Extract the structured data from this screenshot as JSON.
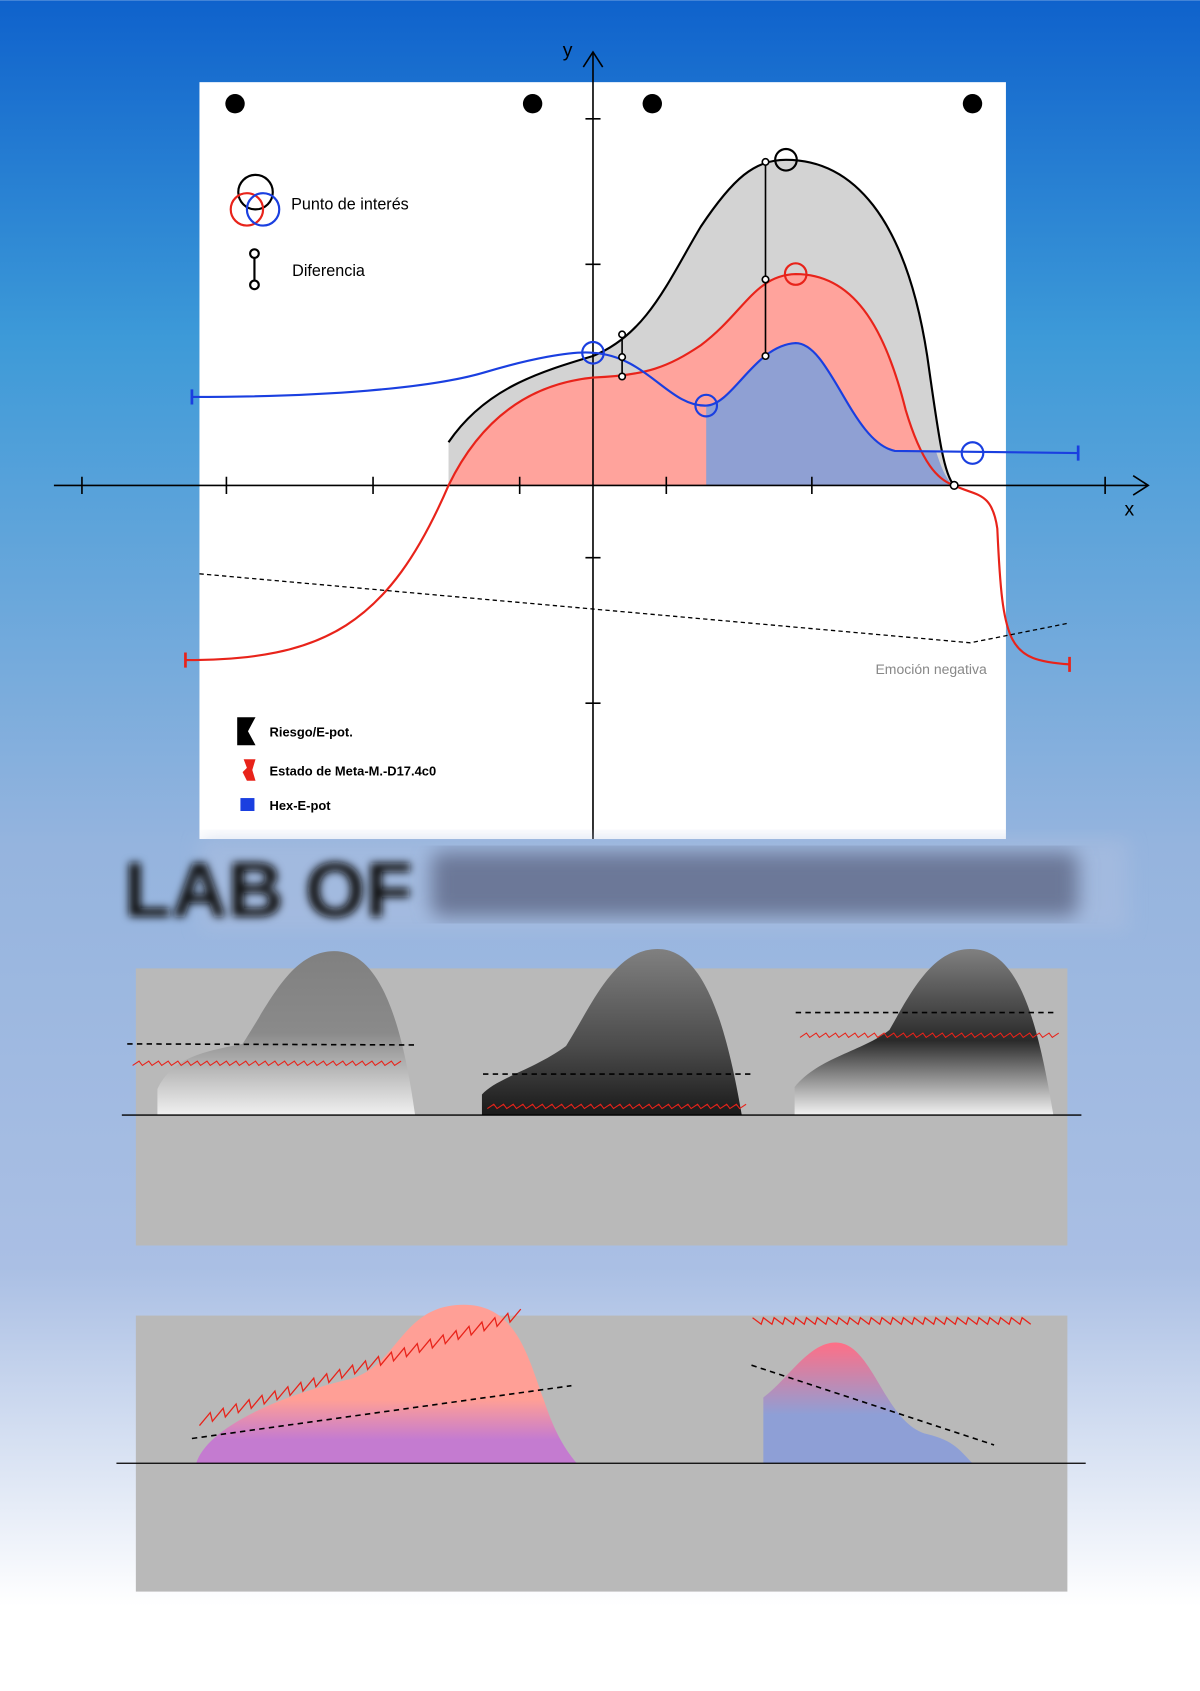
{
  "axes": {
    "y": "y",
    "x": "x"
  },
  "legend_top": [
    "Punto de interés",
    "Diferencia"
  ],
  "annotation": "Emoción negativa",
  "legend_bottom": [
    "Riesgo/E-pot.",
    "Estado de Meta-M.-D17.4c0",
    "Hex-E-pot"
  ],
  "title": "LAB OF"
}
